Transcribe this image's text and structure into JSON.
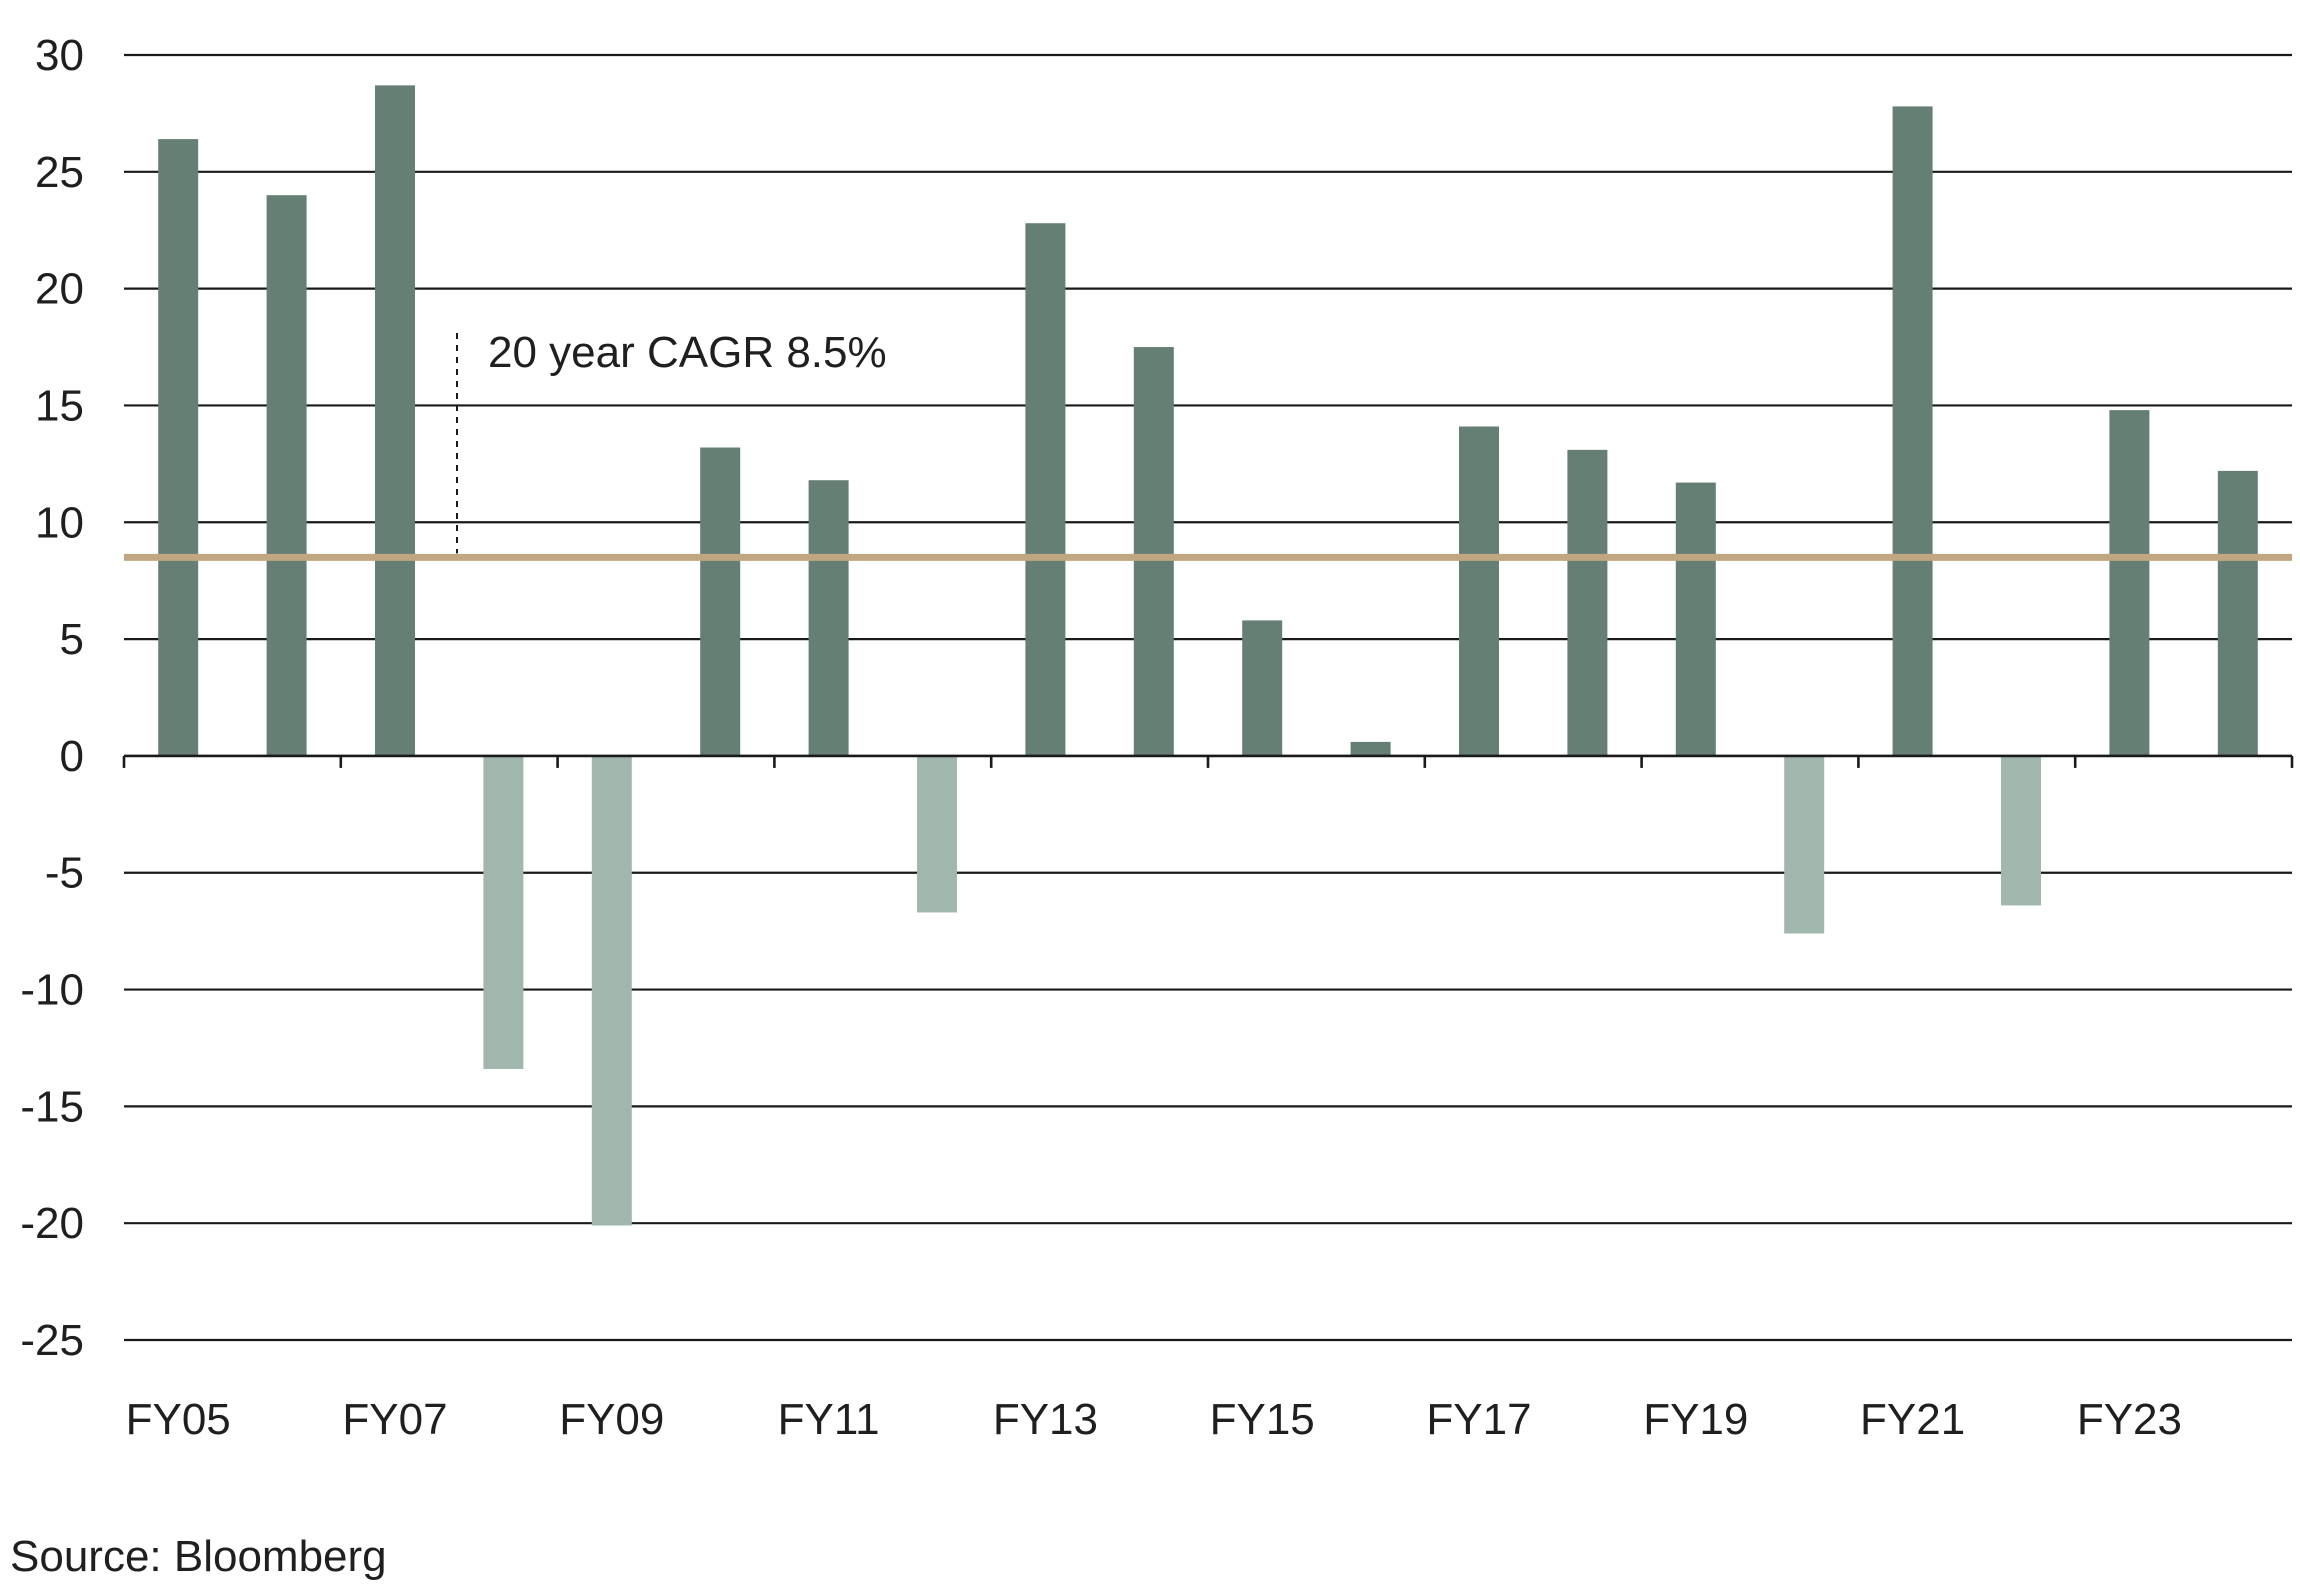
{
  "chart_data": {
    "type": "bar",
    "categories": [
      "FY05",
      "FY06",
      "FY07",
      "FY08",
      "FY09",
      "FY10",
      "FY11",
      "FY12",
      "FY13",
      "FY14",
      "FY15",
      "FY16",
      "FY17",
      "FY18",
      "FY19",
      "FY20",
      "FY21",
      "FY22",
      "FY23",
      "FY24"
    ],
    "values": [
      26.4,
      24.0,
      28.7,
      -13.4,
      -20.1,
      13.2,
      11.8,
      -6.7,
      22.8,
      17.5,
      5.8,
      0.6,
      14.1,
      13.1,
      11.7,
      -7.6,
      27.8,
      -6.4,
      14.8,
      12.2
    ],
    "x_tick_labels": [
      "FY05",
      "FY07",
      "FY09",
      "FY11",
      "FY13",
      "FY15",
      "FY17",
      "FY19",
      "FY21",
      "FY23"
    ],
    "y_tick_labels": [
      "30",
      "25",
      "20",
      "15",
      "10",
      "5",
      "0",
      "-5",
      "-10",
      "-15",
      "-20",
      "-25"
    ],
    "ylim": [
      -25,
      30
    ],
    "y_step": 5,
    "grid": true,
    "legend": "none",
    "reference_line": {
      "value": 8.5,
      "label": "20 year CAGR 8.5%"
    },
    "title": "",
    "xlabel": "",
    "ylabel": "",
    "colors": {
      "positive": "#657f74",
      "negative": "#a1b7ae",
      "reference": "#c0a781",
      "grid": "#1a1a1a"
    }
  },
  "source": "Source: Bloomberg"
}
